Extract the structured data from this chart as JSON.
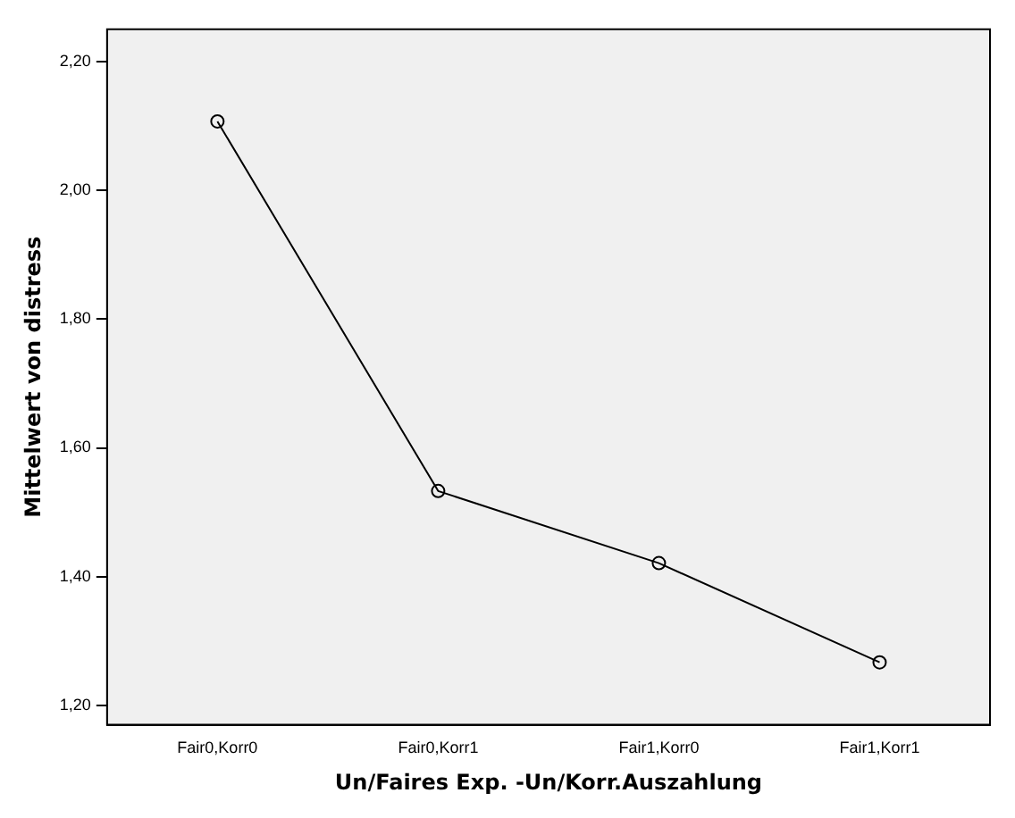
{
  "chart_data": {
    "type": "line",
    "xlabel": "Un/Faires Exp. -Un/Korr.Auszahlung",
    "ylabel": "Mittelwert von distress",
    "categories": [
      "Fair0,Korr0",
      "Fair0,Korr1",
      "Fair1,Korr0",
      "Fair1,Korr1"
    ],
    "series": [
      {
        "color": "#000000",
        "values": [
          2.107,
          1.533,
          1.421,
          1.267
        ]
      }
    ],
    "ylim": [
      1.17,
      2.25
    ],
    "yticks": [
      {
        "value": 1.2,
        "label": "1,20"
      },
      {
        "value": 1.4,
        "label": "1,40"
      },
      {
        "value": 1.6,
        "label": "1,60"
      },
      {
        "value": 1.8,
        "label": "1,80"
      },
      {
        "value": 2.0,
        "label": "2,00"
      },
      {
        "value": 2.2,
        "label": "2,20"
      }
    ],
    "grid": false,
    "legend": false,
    "marker": "circle",
    "line_style": "solid"
  }
}
